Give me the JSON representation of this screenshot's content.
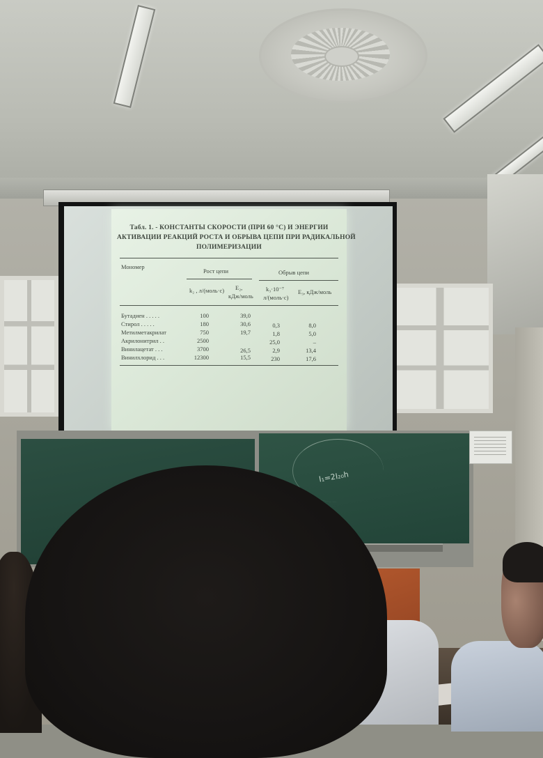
{
  "scene": {
    "slide": {
      "title_lines": [
        "Табл. 1. - КОНСТАНТЫ СКОРОСТИ (ПРИ 60 °С) И ЭНЕРГИИ",
        "АКТИВАЦИИ РЕАКЦИЙ РОСТА И ОБРЫВА ЦЕПИ ПРИ РАДИКАЛЬНОЙ",
        "ПОЛИМЕРИЗАЦИИ"
      ],
      "col_monomer": "Мономер",
      "col_growth": "Рост цепи",
      "col_break": "Обрыв цепи",
      "sub_k2": "k₂ , л/(моль·с)",
      "sub_e2": "E₂,",
      "sub_e2_unit": "кДж/моль",
      "sub_k3": "k₃·10⁻⁷",
      "sub_k3_unit": "л/(моль·с)",
      "sub_e3": "E₃, кДж/моль",
      "rows": [
        {
          "name": "Бутадиен . . . . .",
          "k2": "100",
          "e2": "39,0",
          "k3": "",
          "e3": ""
        },
        {
          "name": "Стирол . . . . .",
          "k2": "180",
          "e2": "30,6",
          "k3": "0,3",
          "e3": "8,0"
        },
        {
          "name": "Метилметакрилат",
          "k2": "750",
          "e2": "19,7",
          "k3": "1,8",
          "e3": "5,0"
        },
        {
          "name": "Акрилонитрил . .",
          "k2": "2500",
          "e2": "",
          "k3": "25,0",
          "e3": "–"
        },
        {
          "name": "Винилацетат . . .",
          "k2": "3700",
          "e2": "26,5",
          "k3": "2,9",
          "e3": "13,4"
        },
        {
          "name": "Винилхлорид . . .",
          "k2": "12300",
          "e2": "15,5",
          "k3": "230",
          "e3": "17,6"
        }
      ]
    },
    "chalk_text": "I₁=2I₂₀h",
    "colors": {
      "slide_bg": "#dbe8d8",
      "board_green": "#244539",
      "orange_panel": "#a54f28"
    }
  }
}
